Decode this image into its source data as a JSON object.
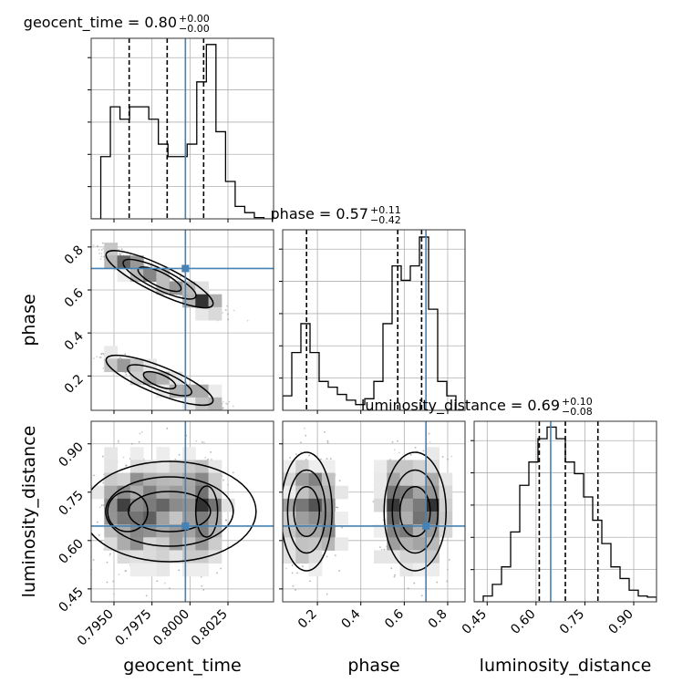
{
  "chart_data": {
    "type": "corner",
    "parameters": [
      "geocent_time",
      "phase",
      "luminosity_distance"
    ],
    "truths": {
      "geocent_time": 0.7997,
      "phase": 0.7,
      "luminosity_distance": 0.645
    },
    "colors": {
      "truth": "#4682b4",
      "line": "#000000",
      "grid": "#b0b0b0",
      "points": "#9a9a9a"
    },
    "titles": [
      {
        "param": "geocent_time",
        "label": "geocent_time = 0.80",
        "plus": "+0.00",
        "minus": "−0.00"
      },
      {
        "param": "phase",
        "label": "phase = 0.57",
        "plus": "+0.11",
        "minus": "−0.42"
      },
      {
        "param": "luminosity_distance",
        "label": "luminosity_distance = 0.69",
        "plus": "+0.10",
        "minus": "−0.08"
      }
    ],
    "axis_labels": {
      "geocent_time": "geocent_time",
      "phase": "phase",
      "luminosity_distance": "luminosity_distance"
    },
    "ranges": {
      "geocent_time": [
        0.7935,
        0.8055
      ],
      "phase": [
        0.04,
        0.88
      ],
      "luminosity_distance": [
        0.41,
        0.97
      ]
    },
    "ticks": {
      "geocent_time": {
        "values": [
          0.795,
          0.7975,
          0.8,
          0.8025
        ],
        "labels": [
          "0.7950",
          "0.7975",
          "0.8000",
          "0.8025"
        ]
      },
      "phase": {
        "values": [
          0.2,
          0.4,
          0.6,
          0.8
        ],
        "labels": [
          "0.2",
          "0.4",
          "0.6",
          "0.8"
        ]
      },
      "luminosity_distance": {
        "values": [
          0.45,
          0.6,
          0.75,
          0.9
        ],
        "labels": [
          "0.45",
          "0.60",
          "0.75",
          "0.90"
        ]
      }
    },
    "quantiles": {
      "geocent_time": [
        0.796,
        0.7985,
        0.8009
      ],
      "phase": [
        0.15,
        0.57,
        0.68
      ],
      "luminosity_distance": [
        0.61,
        0.69,
        0.79
      ]
    },
    "histograms": {
      "geocent_time": {
        "counts": [
          0,
          5,
          9,
          8,
          9,
          9,
          8,
          6,
          5,
          5,
          6,
          11,
          14,
          7,
          3,
          1,
          0.5,
          0.1,
          0
        ],
        "ymax": 14.5
      },
      "phase": {
        "counts": [
          1,
          4,
          6,
          4,
          2,
          1.6,
          1.1,
          0.7,
          0.4,
          0.8,
          2,
          6,
          10,
          9,
          10,
          12,
          7,
          2,
          1,
          0
        ],
        "ymax": 12.5
      },
      "luminosity_distance": {
        "counts": [
          0,
          0.5,
          1.5,
          3,
          6,
          10,
          12,
          14,
          15,
          14,
          12,
          11,
          9,
          7,
          5,
          3,
          2,
          1,
          0.5,
          0.4
        ],
        "ymax": 15.5
      }
    },
    "posterior_model": {
      "geocent_phase_upper_branch": {
        "geocent": [
          0.7945,
          0.8015
        ],
        "phase": [
          0.77,
          0.53
        ]
      },
      "geocent_phase_lower_branch": {
        "geocent": [
          0.7945,
          0.8015
        ],
        "phase": [
          0.28,
          0.08
        ]
      },
      "distance_mode": 0.69
    }
  }
}
